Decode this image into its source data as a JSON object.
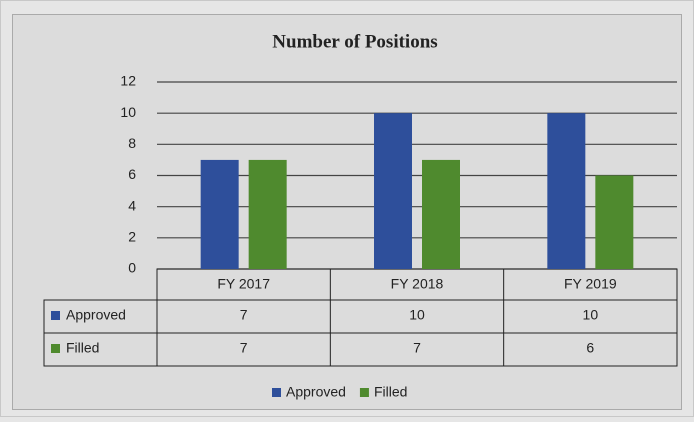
{
  "chart_data": {
    "type": "bar",
    "title": "Number of Positions",
    "categories": [
      "FY 2017",
      "FY 2018",
      "FY 2019"
    ],
    "series": [
      {
        "name": "Approved",
        "color": "#2e4f9b",
        "values": [
          7,
          10,
          10
        ]
      },
      {
        "name": "Filled",
        "color": "#4f8a2e",
        "values": [
          7,
          7,
          6
        ]
      }
    ],
    "ylim": [
      0,
      12
    ],
    "yticks": [
      0,
      2,
      4,
      6,
      8,
      10,
      12
    ],
    "grid": true,
    "legend": "bottom"
  }
}
